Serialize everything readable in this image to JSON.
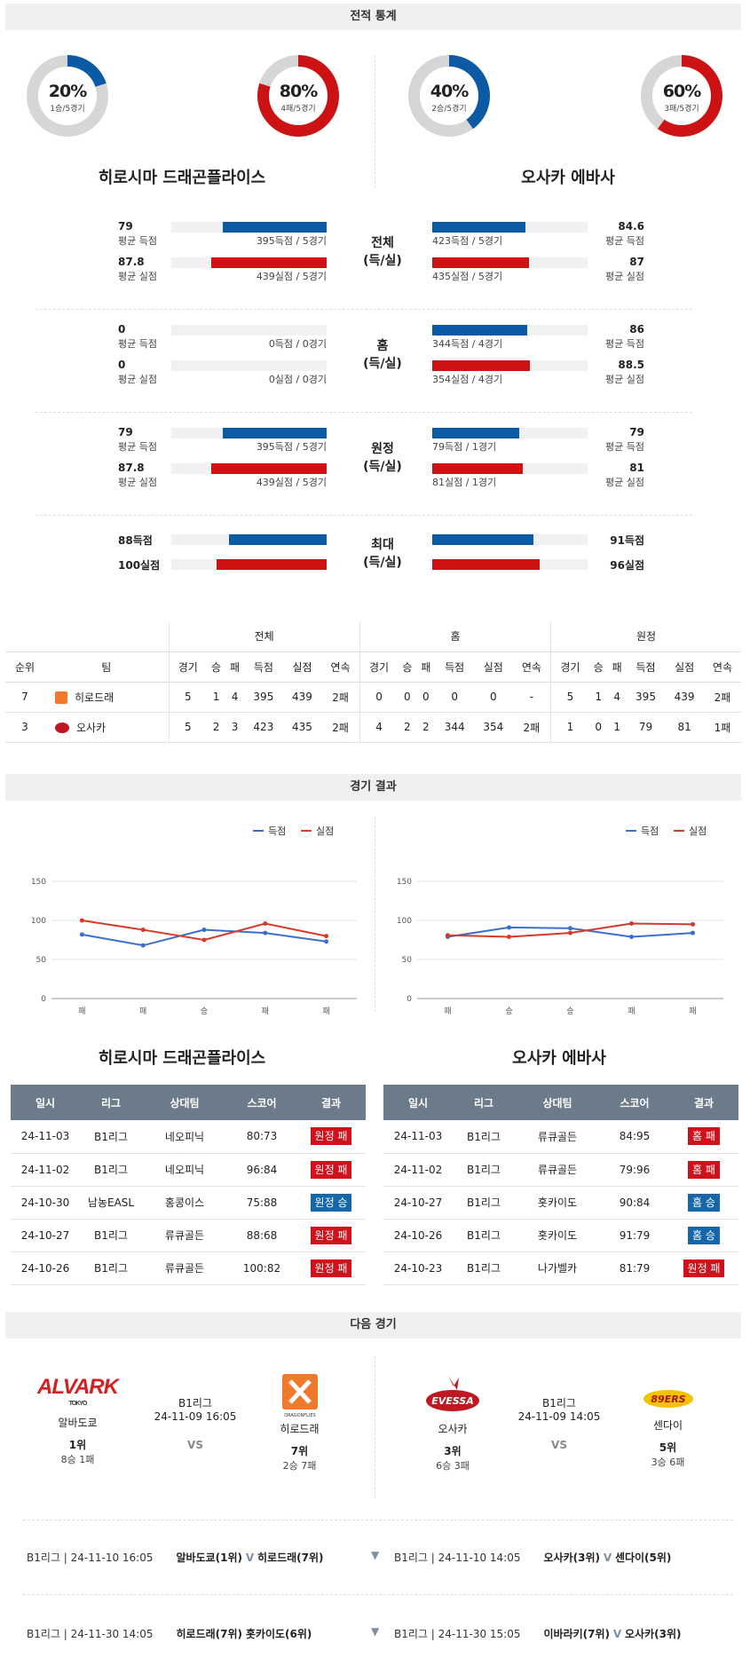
{
  "sections": {
    "stats": "전적 통계",
    "results": "경기 결과",
    "next": "다음 경기"
  },
  "teams": {
    "left": "히로시마 드래곤플라이스",
    "right": "오사카 에바사"
  },
  "donuts": [
    {
      "pct": "20%",
      "sub": "1승/5경기",
      "value": 20,
      "color": "#0b5aa3"
    },
    {
      "pct": "80%",
      "sub": "4패/5경기",
      "value": 80,
      "color": "#cc1212"
    },
    {
      "pct": "40%",
      "sub": "2승/5경기",
      "value": 40,
      "color": "#0b5aa3"
    },
    {
      "pct": "60%",
      "sub": "3패/5경기",
      "value": 60,
      "color": "#cc1212"
    }
  ],
  "stat_groups": [
    {
      "mid1": "전체",
      "mid2": "(득/실)",
      "left": [
        {
          "val": "79",
          "label": "평균 득점",
          "cap": "395득점 / 5경기",
          "fill": 0.67
        },
        {
          "val": "87.8",
          "label": "평균 실점",
          "cap": "439실점 / 5경기",
          "fill": 0.74
        }
      ],
      "right": [
        {
          "val": "84.6",
          "label": "평균 득점",
          "cap": "423득점 / 5경기",
          "fill": 0.6
        },
        {
          "val": "87",
          "label": "평균 실점",
          "cap": "435실점 / 5경기",
          "fill": 0.62
        }
      ]
    },
    {
      "mid1": "홈",
      "mid2": "(득/실)",
      "left": [
        {
          "val": "0",
          "label": "평균 득점",
          "cap": "0득점 / 0경기",
          "fill": 0
        },
        {
          "val": "0",
          "label": "평균 실점",
          "cap": "0실점 / 0경기",
          "fill": 0
        }
      ],
      "right": [
        {
          "val": "86",
          "label": "평균 득점",
          "cap": "344득점 / 4경기",
          "fill": 0.61
        },
        {
          "val": "88.5",
          "label": "평균 실점",
          "cap": "354실점 / 4경기",
          "fill": 0.63
        }
      ]
    },
    {
      "mid1": "원정",
      "mid2": "(득/실)",
      "left": [
        {
          "val": "79",
          "label": "평균 득점",
          "cap": "395득점 / 5경기",
          "fill": 0.67
        },
        {
          "val": "87.8",
          "label": "평균 실점",
          "cap": "439실점 / 5경기",
          "fill": 0.74
        }
      ],
      "right": [
        {
          "val": "79",
          "label": "평균 득점",
          "cap": "79득점 / 1경기",
          "fill": 0.56
        },
        {
          "val": "81",
          "label": "평균 실점",
          "cap": "81실점 / 1경기",
          "fill": 0.58
        }
      ]
    }
  ],
  "max_group": {
    "mid1": "최대",
    "mid2": "(득/실)",
    "left": [
      {
        "val": "88득점",
        "fill": 0.63
      },
      {
        "val": "100실점",
        "fill": 0.71
      }
    ],
    "right": [
      {
        "val": "91득점",
        "fill": 0.65
      },
      {
        "val": "96실점",
        "fill": 0.69
      }
    ]
  },
  "standings": {
    "groups": [
      "전체",
      "홈",
      "원정"
    ],
    "cols": [
      "순위",
      "팀",
      "경기",
      "승",
      "패",
      "득점",
      "실점",
      "연속",
      "경기",
      "승",
      "패",
      "득점",
      "실점",
      "연속",
      "경기",
      "승",
      "패",
      "득점",
      "실점",
      "연속"
    ],
    "rows": [
      {
        "rank": "7",
        "team": "히로드래",
        "cells": [
          "5",
          "1",
          "4",
          "395",
          "439",
          "2패",
          "0",
          "0",
          "0",
          "0",
          "0",
          "-",
          "5",
          "1",
          "4",
          "395",
          "439",
          "2패"
        ]
      },
      {
        "rank": "3",
        "team": "오사카",
        "cells": [
          "5",
          "2",
          "3",
          "423",
          "435",
          "2패",
          "4",
          "2",
          "2",
          "344",
          "354",
          "2패",
          "1",
          "0",
          "1",
          "79",
          "81",
          "1패"
        ]
      }
    ]
  },
  "charts": {
    "legend": {
      "score": "득점",
      "lost": "실점"
    },
    "chart_data": [
      {
        "type": "line",
        "categories": [
          "패",
          "패",
          "승",
          "패",
          "패"
        ],
        "series": [
          {
            "name": "득점",
            "values": [
              82,
              68,
              88,
              84,
              73
            ],
            "color": "#3a6fd0"
          },
          {
            "name": "실점",
            "values": [
              100,
              88,
              75,
              96,
              80
            ],
            "color": "#d63a28"
          }
        ],
        "ylim": [
          0,
          150
        ],
        "yticks": [
          "0",
          "50",
          "100",
          "150"
        ]
      },
      {
        "type": "line",
        "categories": [
          "패",
          "승",
          "승",
          "패",
          "패"
        ],
        "series": [
          {
            "name": "득점",
            "values": [
              79,
              91,
              90,
              79,
              84
            ],
            "color": "#3a6fd0"
          },
          {
            "name": "실점",
            "values": [
              81,
              79,
              84,
              96,
              95
            ],
            "color": "#d63a28"
          }
        ],
        "ylim": [
          0,
          150
        ],
        "yticks": [
          "0",
          "50",
          "100",
          "150"
        ]
      }
    ]
  },
  "results": {
    "headers": [
      "일시",
      "리그",
      "상대팀",
      "스코어",
      "결과"
    ],
    "left": [
      [
        "24-11-03",
        "B1리그",
        "네오피닉",
        "80:73",
        "원정 패",
        "red"
      ],
      [
        "24-11-02",
        "B1리그",
        "네오피닉",
        "96:84",
        "원정 패",
        "red"
      ],
      [
        "24-10-30",
        "남농EASL",
        "홍콩이스",
        "75:88",
        "원정 승",
        "blue"
      ],
      [
        "24-10-27",
        "B1리그",
        "류큐골든",
        "88:68",
        "원정 패",
        "red"
      ],
      [
        "24-10-26",
        "B1리그",
        "류큐골든",
        "100:82",
        "원정 패",
        "red"
      ]
    ],
    "right": [
      [
        "24-11-03",
        "B1리그",
        "류큐골든",
        "84:95",
        "홈 패",
        "red"
      ],
      [
        "24-11-02",
        "B1리그",
        "류큐골든",
        "79:96",
        "홈 패",
        "red"
      ],
      [
        "24-10-27",
        "B1리그",
        "홋카이도",
        "90:84",
        "홈 승",
        "blue"
      ],
      [
        "24-10-26",
        "B1리그",
        "홋카이도",
        "91:79",
        "홈 승",
        "blue"
      ],
      [
        "24-10-23",
        "B1리그",
        "나가벨카",
        "81:79",
        "원정 패",
        "red"
      ]
    ]
  },
  "next": {
    "left": {
      "league": "B1리그",
      "date": "24-11-09 16:05",
      "vs": "VS",
      "home": {
        "logo": "ALVARK",
        "logo_sub": "TOKYO",
        "name": "알바도쿄",
        "rank": "1위",
        "record": "8승 1패"
      },
      "away": {
        "logo_sub": "DRAGONFLIES",
        "name": "히로드래",
        "rank": "7위",
        "record": "2승 7패"
      }
    },
    "right": {
      "league": "B1리그",
      "date": "24-11-09 14:05",
      "vs": "VS",
      "home": {
        "logo": "EVESSA",
        "name": "오사카",
        "rank": "3위",
        "record": "6승 3패"
      },
      "away": {
        "logo": "89ERS",
        "name": "센다이",
        "rank": "5위",
        "record": "3승 6패"
      }
    }
  },
  "footer": [
    {
      "l_info": "B1리그 | 24-11-10 16:05",
      "l_teams": "알바도쿄(1위)",
      "l_v": "V",
      "l_opp": "히로드래(7위)",
      "r_info": "B1리그 | 24-11-10 14:05",
      "r_teams": "오사카(3위)",
      "r_v": "V",
      "r_opp": "센다이(5위)"
    },
    {
      "l_info": "B1리그 | 24-11-30 14:05",
      "l_teams": "히로드래(7위)",
      "l_v": "",
      "l_opp": "홋카이도(6위)",
      "r_info": "B1리그 | 24-11-30 15:05",
      "r_teams": "이바라키(7위)",
      "r_v": "V",
      "r_opp": "오사카(3위)"
    }
  ]
}
